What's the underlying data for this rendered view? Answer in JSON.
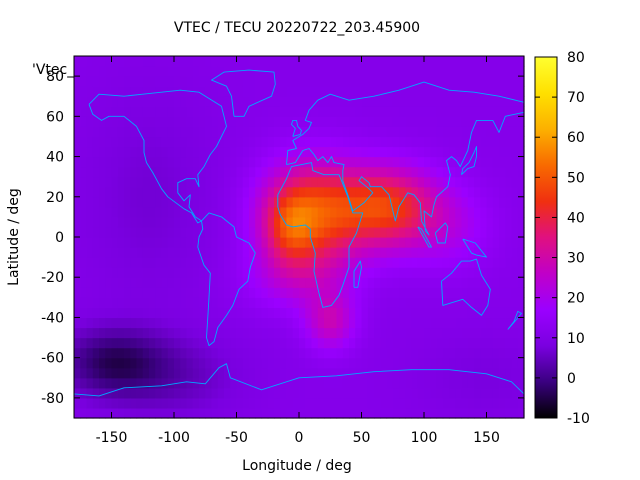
{
  "chart_data": {
    "type": "heatmap",
    "title": "VTEC / TECU 20220722_203.45900",
    "xlabel": "Longitude / deg",
    "ylabel": "Latitude / deg",
    "overlay_label": "'Vtec_",
    "xlim": [
      -180,
      180
    ],
    "ylim": [
      -90,
      90
    ],
    "xticks": [
      -150,
      -100,
      -50,
      0,
      50,
      100,
      150
    ],
    "yticks": [
      -80,
      -60,
      -40,
      -20,
      0,
      20,
      40,
      60,
      80
    ],
    "colorbar": {
      "min": -10,
      "max": 80,
      "ticks": [
        -10,
        0,
        10,
        20,
        30,
        40,
        50,
        60,
        70,
        80
      ]
    },
    "colormap": [
      "#000000",
      "#3a0080",
      "#7a00e0",
      "#9b00ff",
      "#c000c8",
      "#e01080",
      "#f03010",
      "#f86a00",
      "#fcb000",
      "#ffe000",
      "#ffff30"
    ],
    "coastline_color": "#00a8ff",
    "grid": false,
    "legend": "none",
    "features": [
      {
        "type": "background",
        "value": 11
      },
      {
        "type": "gaussian",
        "lon": 10,
        "lat": 12,
        "slon": 28,
        "slat": 18,
        "amp": 35
      },
      {
        "type": "gaussian",
        "lon": -8,
        "lat": 5,
        "slon": 14,
        "slat": 12,
        "amp": 15
      },
      {
        "type": "gaussian",
        "lon": 70,
        "lat": 15,
        "slon": 28,
        "slat": 14,
        "amp": 33
      },
      {
        "type": "gaussian",
        "lon": 25,
        "lat": -42,
        "slon": 14,
        "slat": 10,
        "amp": 16
      },
      {
        "type": "gaussian",
        "lon": 0,
        "lat": -20,
        "slon": 30,
        "slat": 12,
        "amp": 10
      },
      {
        "type": "gaussian",
        "lon": 120,
        "lat": 5,
        "slon": 25,
        "slat": 15,
        "amp": 8
      },
      {
        "type": "gaussian",
        "lon": -120,
        "lat": 20,
        "slon": 40,
        "slat": 40,
        "amp": -4
      },
      {
        "type": "gaussian",
        "lon": -150,
        "lat": -62,
        "slon": 30,
        "slat": 12,
        "amp": -13
      },
      {
        "type": "gaussian",
        "lon": -100,
        "lat": -70,
        "slon": 40,
        "slat": 15,
        "amp": -6
      },
      {
        "type": "gaussian",
        "lon": 150,
        "lat": -70,
        "slon": 40,
        "slat": 15,
        "amp": -3
      }
    ]
  }
}
